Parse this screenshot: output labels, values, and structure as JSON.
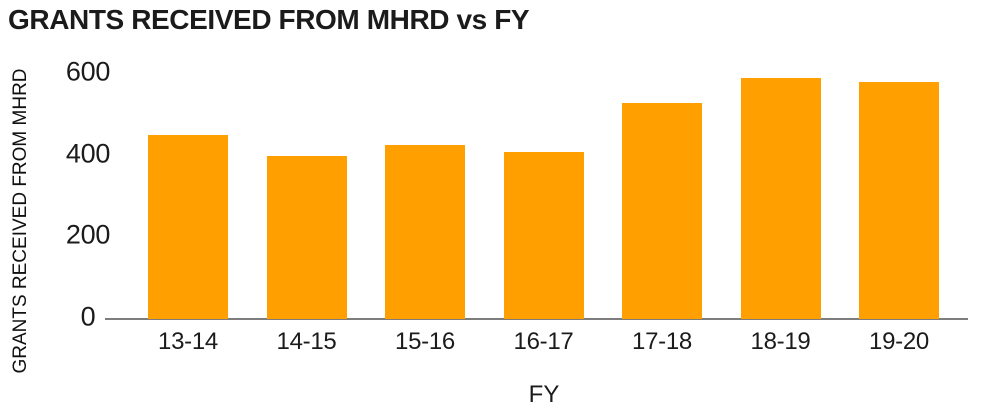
{
  "chart_data": {
    "type": "bar",
    "title": "GRANTS RECEIVED FROM MHRD vs FY",
    "xlabel": "FY",
    "ylabel": "GRANTS RECEIVED FROM MHRD",
    "categories": [
      "13-14",
      "14-15",
      "15-16",
      "16-17",
      "17-18",
      "18-19",
      "19-20"
    ],
    "values": [
      450,
      400,
      425,
      410,
      530,
      590,
      580
    ],
    "ylim": [
      0,
      600
    ],
    "yticks": [
      0,
      200,
      400,
      600
    ],
    "bar_color": "#FFA000",
    "axis_line_color": "#7d7d7d",
    "text_color": "#1b1b1b",
    "grid": false,
    "legend_position": "none"
  }
}
